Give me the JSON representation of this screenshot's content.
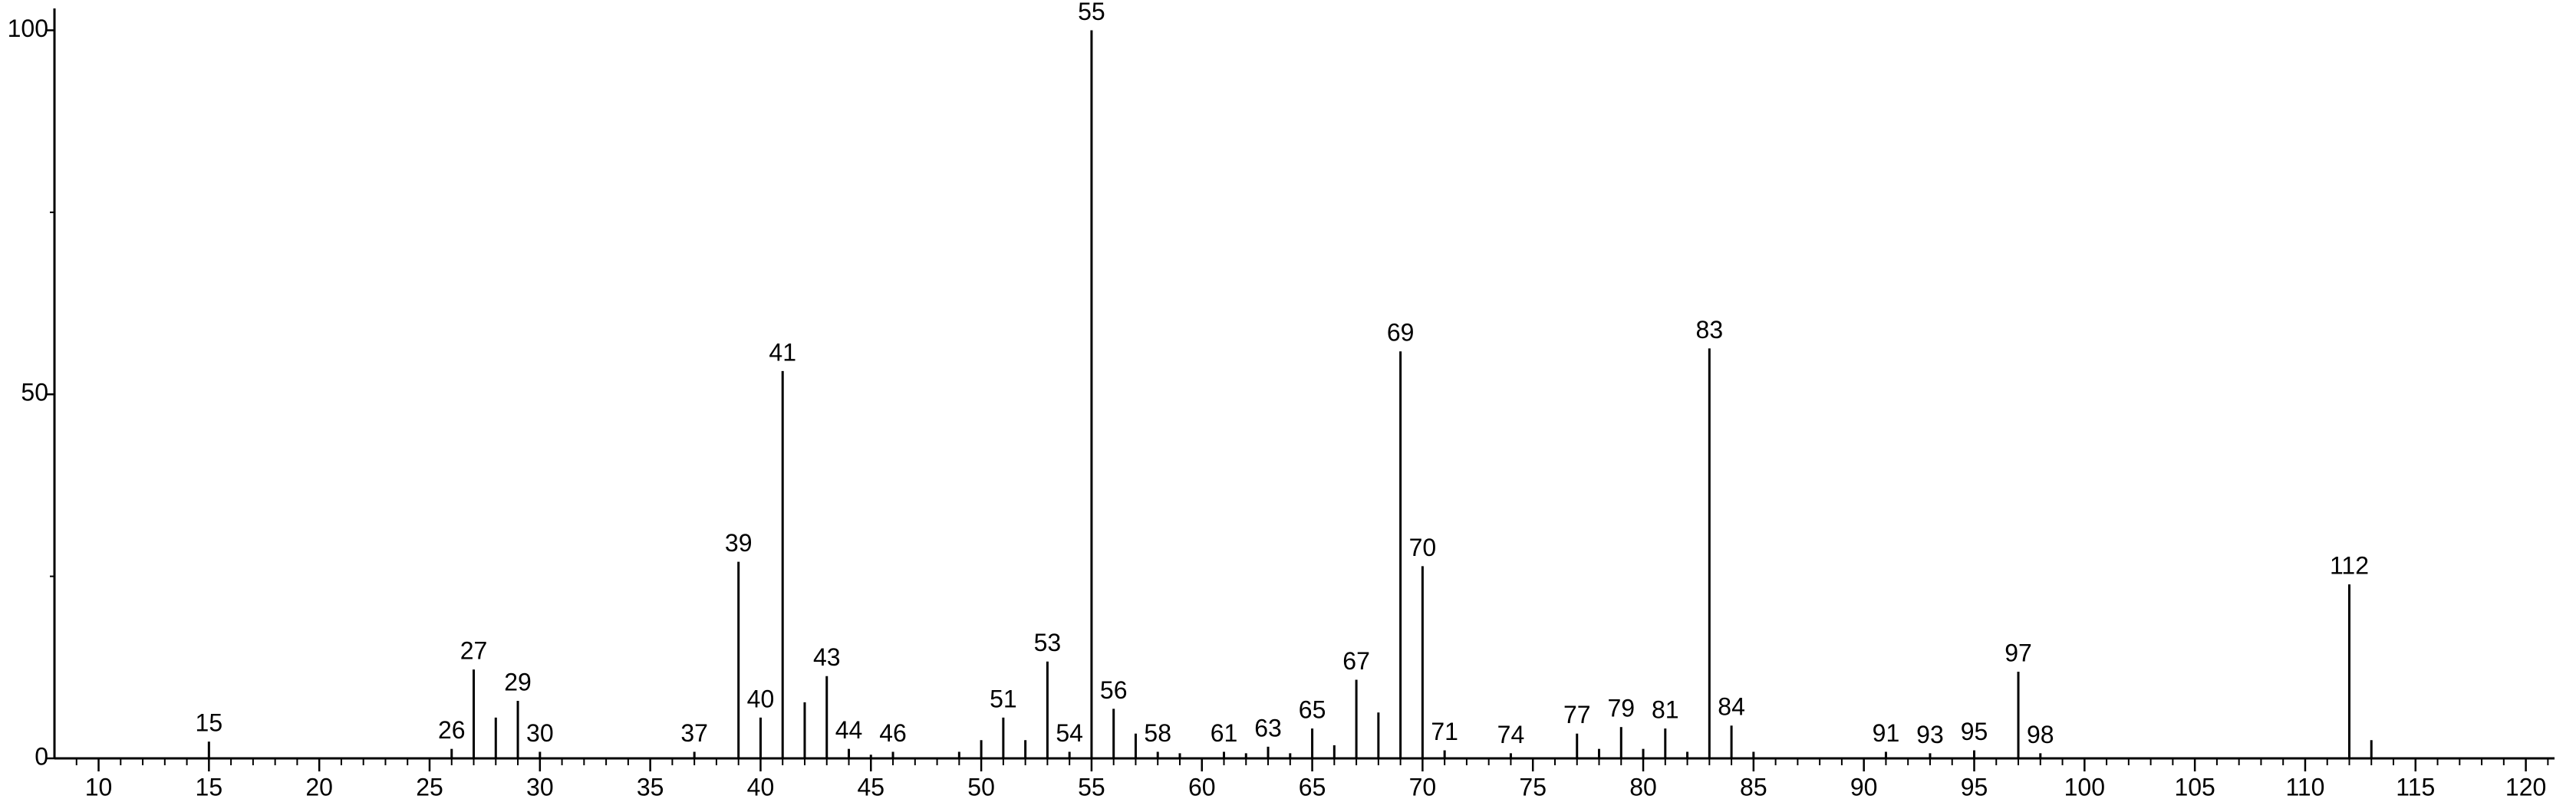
{
  "chart_data": {
    "type": "stem",
    "x": [
      15,
      26,
      27,
      28,
      29,
      30,
      37,
      39,
      40,
      41,
      42,
      43,
      44,
      45,
      46,
      49,
      50,
      51,
      52,
      53,
      54,
      55,
      56,
      57,
      58,
      59,
      61,
      62,
      63,
      64,
      65,
      66,
      67,
      68,
      69,
      70,
      71,
      74,
      77,
      78,
      79,
      80,
      81,
      82,
      83,
      84,
      85,
      91,
      93,
      95,
      97,
      98,
      112,
      113
    ],
    "values": [
      2.3,
      1.3,
      12.2,
      5.6,
      7.9,
      0.9,
      0.9,
      27,
      5.6,
      53.2,
      7.7,
      11.3,
      1.3,
      0.5,
      0.9,
      0.9,
      2.5,
      5.6,
      2.5,
      13.3,
      0.9,
      100,
      6.8,
      3.4,
      0.9,
      0.7,
      0.9,
      0.7,
      1.6,
      0.7,
      4.1,
      1.8,
      10.8,
      6.3,
      55.9,
      26.4,
      1.1,
      0.7,
      3.4,
      1.3,
      4.3,
      1.3,
      4.1,
      0.9,
      56.3,
      4.5,
      0.9,
      0.9,
      0.7,
      1.1,
      11.9,
      0.7,
      23.9,
      2.5
    ],
    "peak_labels": [
      15,
      26,
      27,
      29,
      30,
      37,
      39,
      40,
      41,
      43,
      44,
      46,
      51,
      53,
      54,
      55,
      56,
      58,
      61,
      63,
      65,
      67,
      69,
      70,
      71,
      74,
      77,
      79,
      81,
      83,
      84,
      91,
      93,
      95,
      97,
      98,
      112
    ],
    "color": "#000000",
    "xlim": [
      8,
      121.3
    ],
    "ylim": [
      0,
      103
    ],
    "xticks": [
      10,
      15,
      20,
      25,
      30,
      35,
      40,
      45,
      50,
      55,
      60,
      65,
      70,
      75,
      80,
      85,
      90,
      95,
      100,
      105,
      110,
      115,
      120
    ],
    "xminorticks": [
      9,
      11,
      12,
      13,
      14,
      16,
      17,
      18,
      19,
      21,
      22,
      23,
      24,
      26,
      27,
      28,
      29,
      31,
      32,
      33,
      34,
      36,
      37,
      38,
      39,
      41,
      42,
      43,
      44,
      46,
      47,
      48,
      49,
      51,
      52,
      53,
      54,
      56,
      57,
      58,
      59,
      61,
      62,
      63,
      64,
      66,
      67,
      68,
      69,
      71,
      72,
      73,
      74,
      76,
      77,
      78,
      79,
      81,
      82,
      83,
      84,
      86,
      87,
      88,
      89,
      91,
      92,
      93,
      94,
      96,
      97,
      98,
      99,
      101,
      102,
      103,
      104,
      106,
      107,
      108,
      109,
      111,
      112,
      113,
      114,
      116,
      117,
      118,
      119,
      121
    ],
    "yticks": [
      0,
      50,
      100
    ],
    "yminorticks": [
      25,
      75
    ]
  }
}
